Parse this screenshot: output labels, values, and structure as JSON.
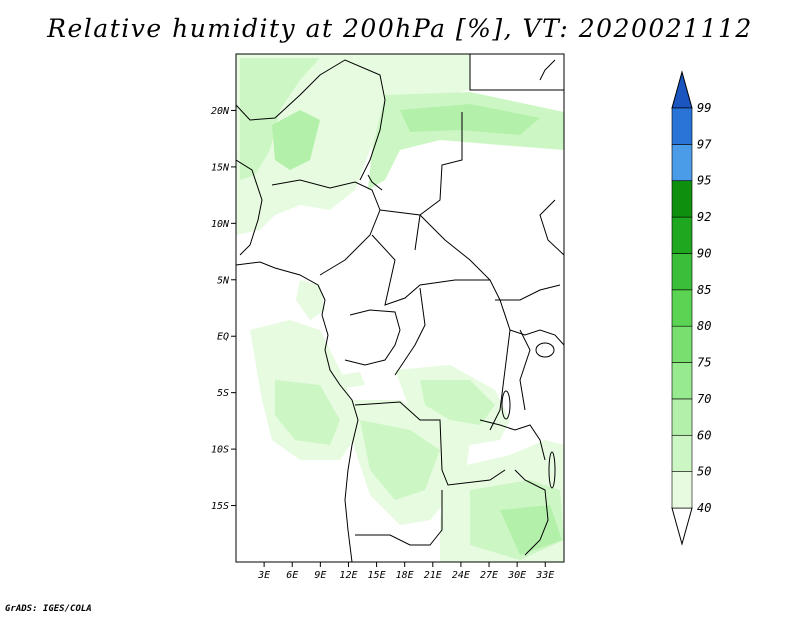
{
  "title": "Relative humidity at 200hPa [%], VT: 2020021112",
  "credit": "GrADS: IGES/COLA",
  "map": {
    "lat_range": [
      -20,
      25
    ],
    "lon_range": [
      0,
      35
    ],
    "lon_ticks": [
      "3E",
      "6E",
      "9E",
      "12E",
      "15E",
      "18E",
      "21E",
      "24E",
      "27E",
      "30E",
      "33E"
    ],
    "lat_ticks": [
      "20N",
      "15N",
      "10N",
      "5N",
      "EQ",
      "5S",
      "10S",
      "15S"
    ]
  },
  "colorbar": {
    "labels": [
      "40",
      "50",
      "60",
      "70",
      "75",
      "80",
      "85",
      "90",
      "92",
      "95",
      "97",
      "99"
    ],
    "colors": [
      "#ffffff",
      "#e6fbe0",
      "#ccf7c4",
      "#b3f0aa",
      "#98ea8e",
      "#79e070",
      "#5ad452",
      "#3bbf3b",
      "#1fa71f",
      "#0e8f0e",
      "#4a9be8",
      "#2a74d8",
      "#1a55c0"
    ]
  }
}
